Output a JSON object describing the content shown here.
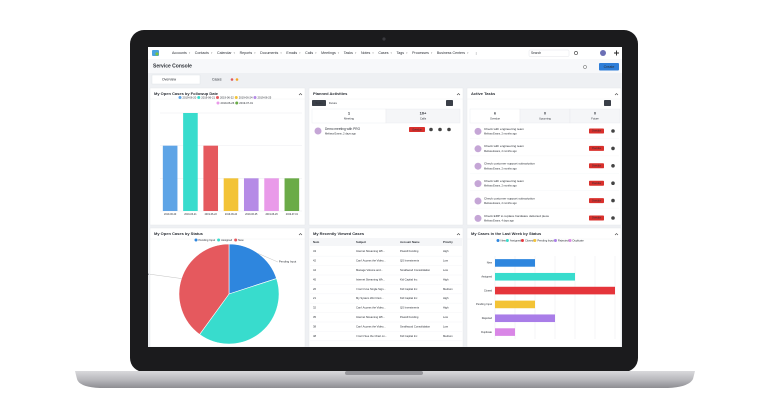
{
  "nav": {
    "items": [
      "Accounts",
      "Contacts",
      "Calendar",
      "Reports",
      "Documents",
      "Emails",
      "Calls",
      "Meetings",
      "Tasks",
      "Notes",
      "Cases",
      "Tags",
      "Processes",
      "Business Centers"
    ],
    "search": "Search"
  },
  "header": {
    "title": "Service Console",
    "create": "Create"
  },
  "tabs": [
    "Overview",
    "Cases"
  ],
  "activities": {
    "title": "Planned Activities",
    "tabs": [
      "Today",
      "Future"
    ],
    "stats": [
      {
        "count": "1",
        "label": "Meeting"
      },
      {
        "count": "10+",
        "label": "Calls"
      }
    ],
    "items": [
      {
        "title": "Demo meeting with PRO",
        "meta": "Melissa Evans, 2 days ago",
        "status": "Overdue"
      }
    ]
  },
  "tasks": {
    "title": "Active Tasks",
    "stats": [
      {
        "count": "6",
        "label": "Overdue"
      },
      {
        "count": "0",
        "label": "Upcoming"
      },
      {
        "count": "0",
        "label": "Future"
      }
    ],
    "items": [
      {
        "title": "Check with engineering team",
        "meta": "Melissa Evans, 2 months ago",
        "status": "Overdue"
      },
      {
        "title": "Check with engineering team",
        "meta": "Melissa Evans, 2 months ago",
        "status": "Overdue"
      },
      {
        "title": "Check customer support subscription",
        "meta": "Melissa Evans, 2 months ago",
        "status": "Overdue"
      },
      {
        "title": "Check with engineering team",
        "meta": "Melissa Evans, 2 months ago",
        "status": "Overdue"
      },
      {
        "title": "Check customer support subscription",
        "meta": "Melissa Evans, 2 months ago",
        "status": "Overdue"
      },
      {
        "title": "Check ERP to replace hardware defected piece",
        "meta": "Melissa Evans, 4 days ago",
        "status": "Overdue"
      }
    ]
  },
  "recent_cases": {
    "title": "My Recently Viewed Cases",
    "columns": [
      "Num",
      "Subject",
      "Account Name",
      "Priority"
    ],
    "rows": [
      [
        "43",
        "Internet Streaming Wh...",
        "Powell Funding",
        "High"
      ],
      [
        "42",
        "Can't Access the Video...",
        "QS Investments",
        "Low"
      ],
      [
        "44",
        "Manage Volume and...",
        "Smallwood Consolidation",
        "Low"
      ],
      [
        "45",
        "Internet Streaming Wh...",
        "Kid Capital Inc",
        "High"
      ],
      [
        "26",
        "I Can't Use Single Sign...",
        "Kid Capital Inc",
        "Medium"
      ],
      [
        "21",
        "My System Won't Ext...",
        "Kid Capital Inc",
        "High"
      ],
      [
        "32",
        "Can't Access the Video...",
        "QS Investments",
        "High"
      ],
      [
        "35",
        "Internet Streaming Wh...",
        "Powell Funding",
        "Low"
      ],
      [
        "38",
        "Can't Access the Video...",
        "Smallwood Consolidation",
        "Low"
      ],
      [
        "48",
        "I Can't See the Chart on...",
        "Kid Capital Inc",
        "Medium"
      ]
    ]
  },
  "chart_data": [
    {
      "type": "bar",
      "orientation": "vertical",
      "title": "My Open Cases by Followup Date",
      "categories": [
        "2019-06-20",
        "2019-06-21",
        "2019-06-22",
        "2019-06-24",
        "2019-06-25",
        "2019-06-26",
        "2019-07-01"
      ],
      "values": [
        2,
        3,
        2,
        1,
        1,
        1,
        1
      ],
      "colors": [
        "#5ea4e6",
        "#38dccd",
        "#e5595e",
        "#f3c336",
        "#b58be6",
        "#e99ae9",
        "#6aab47"
      ],
      "ylim": [
        0,
        3
      ],
      "yticks": [
        0,
        1,
        2,
        3
      ],
      "grid": true,
      "legend": "top"
    },
    {
      "type": "pie",
      "title": "My Open Cases by Status",
      "categories": [
        "Pending Input",
        "Assigned",
        "New"
      ],
      "values": [
        2,
        4,
        4
      ],
      "colors": [
        "#2e86de",
        "#38dccd",
        "#e5595e"
      ],
      "legend": "top"
    },
    {
      "type": "bar",
      "orientation": "horizontal",
      "title": "My Cases in the Last Week by Status",
      "categories": [
        "New",
        "Assigned",
        "Closed",
        "Pending Input",
        "Rejected",
        "Duplicate"
      ],
      "values": [
        2,
        4,
        6,
        2,
        3,
        1
      ],
      "colors": [
        "#2e86de",
        "#38dccd",
        "#e5353b",
        "#f3c336",
        "#a97de8",
        "#d986e6"
      ],
      "xlim": [
        0,
        6
      ],
      "xticks": [
        0,
        1,
        2,
        3,
        4,
        5,
        6
      ],
      "grid": true,
      "legend": "top"
    }
  ]
}
